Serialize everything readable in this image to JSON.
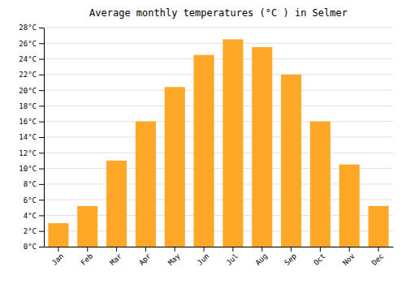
{
  "chart_data": {
    "type": "bar",
    "title": "Average monthly temperatures (°C ) in Selmer",
    "categories": [
      "Jan",
      "Feb",
      "Mar",
      "Apr",
      "May",
      "Jun",
      "Jul",
      "Aug",
      "Sep",
      "Oct",
      "Nov",
      "Dec"
    ],
    "values": [
      3.0,
      5.2,
      11.0,
      16.0,
      20.4,
      24.5,
      26.5,
      25.5,
      22.0,
      16.0,
      10.5,
      5.2
    ],
    "color": "#FFA726",
    "ylim": [
      0,
      28
    ],
    "yticks": [
      {
        "value": 0,
        "label": "0°C"
      },
      {
        "value": 2,
        "label": "2°C"
      },
      {
        "value": 4,
        "label": "4°C"
      },
      {
        "value": 6,
        "label": "6°C"
      },
      {
        "value": 8,
        "label": "8°C"
      },
      {
        "value": 10,
        "label": "10°C"
      },
      {
        "value": 12,
        "label": "12°C"
      },
      {
        "value": 14,
        "label": "14°C"
      },
      {
        "value": 16,
        "label": "16°C"
      },
      {
        "value": 18,
        "label": "18°C"
      },
      {
        "value": 20,
        "label": "20°C"
      },
      {
        "value": 22,
        "label": "22°C"
      },
      {
        "value": 24,
        "label": "24°C"
      },
      {
        "value": 26,
        "label": "26°C"
      },
      {
        "value": 28,
        "label": "28°C"
      }
    ],
    "grid": true
  }
}
